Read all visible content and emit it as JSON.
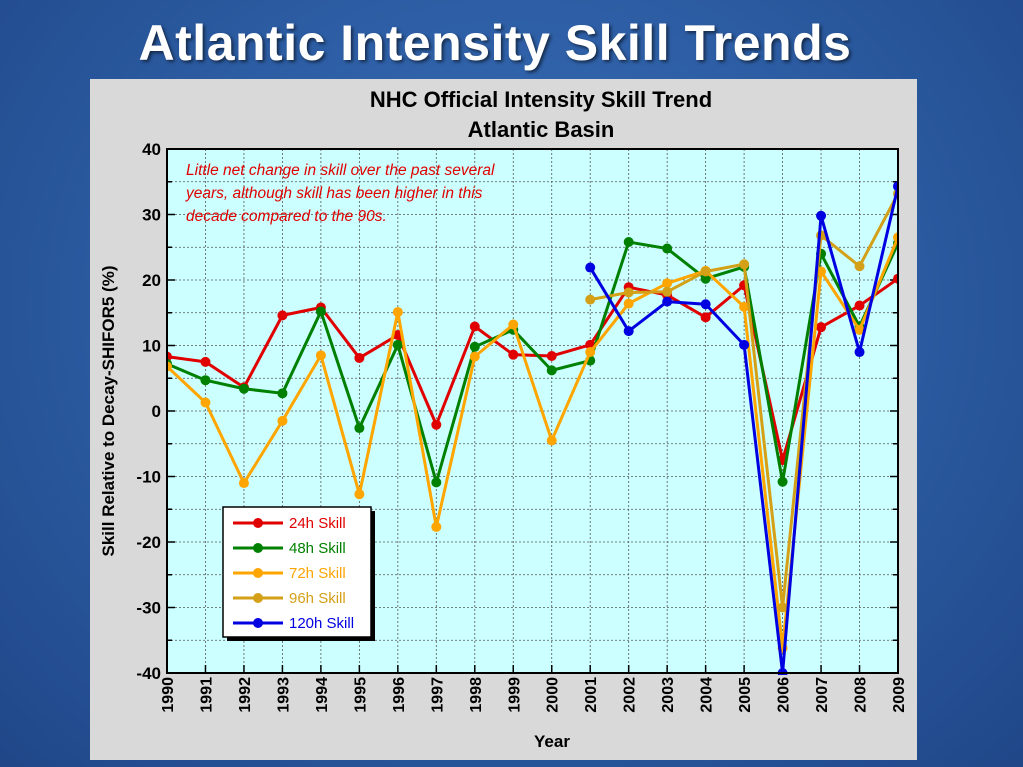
{
  "slide": {
    "title": "Atlantic Intensity Skill Trends"
  },
  "chart_data": {
    "type": "line",
    "title": "NHC Official Intensity Skill Trend",
    "subtitle": "Atlantic Basin",
    "xlabel": "Year",
    "ylabel": "Skill Relative to Decay-SHIFOR5 (%)",
    "ylim": [
      -40,
      40
    ],
    "yticks": [
      "40",
      "30",
      "20",
      "10",
      "0",
      "-10",
      "-20",
      "-30",
      "-40"
    ],
    "x": [
      "1990",
      "1991",
      "1992",
      "1993",
      "1994",
      "1995",
      "1996",
      "1997",
      "1998",
      "1999",
      "2000",
      "2001",
      "2002",
      "2003",
      "2004",
      "2005",
      "2006",
      "2007",
      "2008",
      "2009"
    ],
    "grid": true,
    "legend_position": "bottom-left",
    "annotation": "Little net change in skill over the past several years, although skill has been higher in this decade compared to the 90s.",
    "colors": {
      "plot_bg": "#ccffff",
      "frame_bg": "#d9d9d9",
      "annotation": "#e00000"
    },
    "series": [
      {
        "name": "24h Skill",
        "color": "#e00000",
        "values": [
          8.3,
          7.5,
          3.6,
          14.6,
          15.8,
          8.1,
          11.6,
          -2.1,
          12.9,
          8.6,
          8.4,
          10.1,
          18.9,
          17.7,
          14.3,
          19.2,
          -7.5,
          12.8,
          16.1,
          20.2
        ]
      },
      {
        "name": "48h Skill",
        "color": "#008000",
        "values": [
          7.2,
          4.7,
          3.4,
          2.7,
          15.2,
          -2.6,
          10.1,
          -10.9,
          9.8,
          12.4,
          6.2,
          7.7,
          25.8,
          24.8,
          20.2,
          22.0,
          -10.8,
          24.0,
          12.9,
          25.6
        ]
      },
      {
        "name": "72h Skill",
        "color": "#ffa500",
        "values": [
          6.8,
          1.3,
          -11.0,
          -1.5,
          8.5,
          -12.7,
          15.1,
          -17.7,
          8.3,
          13.2,
          -4.5,
          9.0,
          16.4,
          19.5,
          21.4,
          15.9,
          -36.2,
          21.3,
          12.4,
          26.5
        ]
      },
      {
        "name": "96h Skill",
        "color": "#d4a017",
        "values": [
          null,
          null,
          null,
          null,
          null,
          null,
          null,
          null,
          null,
          null,
          null,
          17.0,
          18.1,
          18.2,
          21.3,
          22.4,
          -30.0,
          26.8,
          22.1,
          33.2
        ]
      },
      {
        "name": "120h Skill",
        "color": "#0000e0",
        "values": [
          null,
          null,
          null,
          null,
          null,
          null,
          null,
          null,
          null,
          null,
          null,
          21.9,
          12.2,
          16.7,
          16.3,
          10.1,
          -40.0,
          29.8,
          9.0,
          34.3
        ]
      }
    ]
  }
}
